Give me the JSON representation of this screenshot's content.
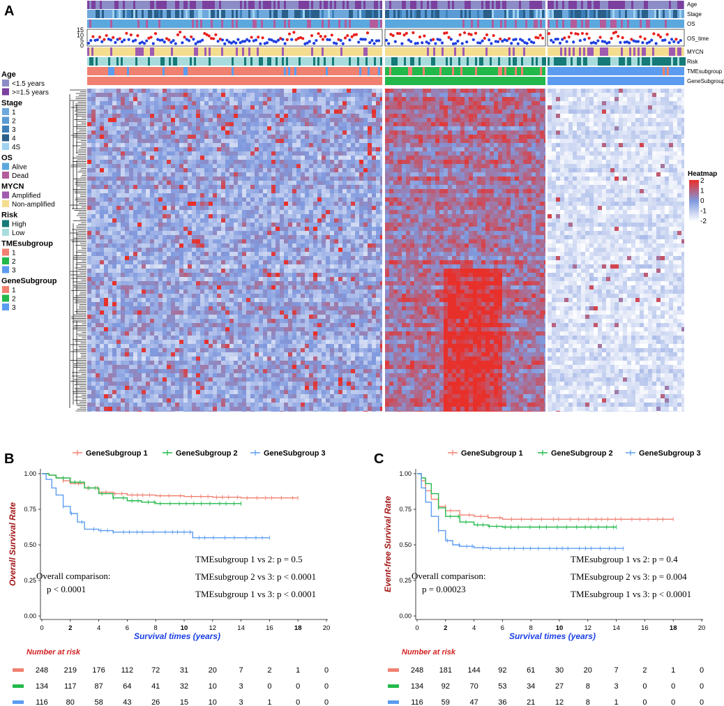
{
  "panel_labels": {
    "a": "A",
    "b": "B",
    "c": "C"
  },
  "colors": {
    "age_young": "#8c8cc6",
    "age_old": "#7b3f9e",
    "stage": [
      "#6fa8dc",
      "#5b9bd5",
      "#3d7fb8",
      "#2a5f8a",
      "#9fd3f0"
    ],
    "os_alive": "#5ba8de",
    "os_dead": "#b25c9c",
    "mycn_amp": "#a05ab0",
    "mycn_non": "#f4dd8f",
    "risk_high": "#157a78",
    "risk_low": "#a8dcdc",
    "group1": "#f08070",
    "group2": "#22b94a",
    "group3": "#5b9cf0",
    "heat_high": "#e8302a",
    "heat_mid": "#7f99de",
    "heat_low": "#ffffff",
    "os_time_red": "#e82020",
    "os_time_blue": "#1f3fe0"
  },
  "annotation_rows": [
    "Age",
    "Stage",
    "OS",
    "OS_time",
    "MYCN",
    "Risk",
    "TMEsubgroup",
    "GeneSubgroup"
  ],
  "os_time_ticks": [
    "15",
    "10",
    "5",
    "0"
  ],
  "legend": [
    {
      "title": "Age",
      "items": [
        {
          "label": "<1.5 years",
          "color": "#8c8cc6"
        },
        {
          "label": ">=1.5 years",
          "color": "#7b3f9e"
        }
      ]
    },
    {
      "title": "Stage",
      "items": [
        {
          "label": "1",
          "color": "#6fa8dc"
        },
        {
          "label": "2",
          "color": "#5b9bd5"
        },
        {
          "label": "3",
          "color": "#3d7fb8"
        },
        {
          "label": "4",
          "color": "#2a5f8a"
        },
        {
          "label": "4S",
          "color": "#9fd3f0"
        }
      ]
    },
    {
      "title": "OS",
      "items": [
        {
          "label": "Alive",
          "color": "#5ba8de"
        },
        {
          "label": "Dead",
          "color": "#b25c9c"
        }
      ]
    },
    {
      "title": "MYCN",
      "items": [
        {
          "label": "Amplified",
          "color": "#a05ab0"
        },
        {
          "label": "Non-amplified",
          "color": "#f4dd8f"
        }
      ]
    },
    {
      "title": "Risk",
      "items": [
        {
          "label": "High",
          "color": "#157a78"
        },
        {
          "label": "Low",
          "color": "#a8dcdc"
        }
      ]
    },
    {
      "title": "TMEsubgroup",
      "items": [
        {
          "label": "1",
          "color": "#f08070"
        },
        {
          "label": "2",
          "color": "#22b94a"
        },
        {
          "label": "3",
          "color": "#5b9cf0"
        }
      ]
    },
    {
      "title": "GeneSubgroup",
      "items": [
        {
          "label": "1",
          "color": "#f08070"
        },
        {
          "label": "2",
          "color": "#22b94a"
        },
        {
          "label": "3",
          "color": "#5b9cf0"
        }
      ]
    }
  ],
  "heatmap_legend": {
    "title": "Heatmap",
    "ticks": [
      "2",
      "1",
      "0",
      "-1",
      "-2"
    ]
  },
  "chart_data": [
    {
      "type": "heatmap",
      "title": "",
      "groups": [
        "GeneSubgroup 1",
        "GeneSubgroup 2",
        "GeneSubgroup 3"
      ],
      "group_sizes": [
        248,
        134,
        116
      ],
      "value_range": [
        -2,
        2
      ]
    },
    {
      "type": "line",
      "subtype": "kaplan-meier",
      "ylabel": "Overall Survival Rate",
      "xlabel": "Survival times (years)",
      "xlim": [
        0,
        20
      ],
      "ylim": [
        0,
        1
      ],
      "xticks": [
        "0",
        "2",
        "4",
        "6",
        "8",
        "10",
        "12",
        "14",
        "16",
        "18",
        "20"
      ],
      "yticks": [
        "0.00",
        "0.25",
        "0.50",
        "0.75",
        "1.00"
      ],
      "series": [
        {
          "name": "GeneSubgroup 1",
          "color": "#f08070",
          "points": [
            [
              0,
              1
            ],
            [
              0.5,
              0.99
            ],
            [
              1,
              0.97
            ],
            [
              1.5,
              0.95
            ],
            [
              2,
              0.93
            ],
            [
              3,
              0.9
            ],
            [
              4,
              0.87
            ],
            [
              5,
              0.86
            ],
            [
              6,
              0.85
            ],
            [
              8,
              0.845
            ],
            [
              10,
              0.84
            ],
            [
              12,
              0.835
            ],
            [
              14,
              0.83
            ],
            [
              16,
              0.83
            ],
            [
              18,
              0.83
            ]
          ]
        },
        {
          "name": "GeneSubgroup 2",
          "color": "#22b94a",
          "points": [
            [
              0,
              1
            ],
            [
              0.5,
              0.99
            ],
            [
              1,
              0.97
            ],
            [
              2,
              0.94
            ],
            [
              3,
              0.9
            ],
            [
              4,
              0.86
            ],
            [
              5,
              0.83
            ],
            [
              6,
              0.81
            ],
            [
              7,
              0.8
            ],
            [
              8,
              0.79
            ],
            [
              10,
              0.79
            ],
            [
              12,
              0.79
            ],
            [
              14,
              0.79
            ]
          ]
        },
        {
          "name": "GeneSubgroup 3",
          "color": "#5b9cf0",
          "points": [
            [
              0,
              1
            ],
            [
              0.3,
              0.96
            ],
            [
              0.7,
              0.9
            ],
            [
              1,
              0.85
            ],
            [
              1.5,
              0.77
            ],
            [
              2,
              0.72
            ],
            [
              2.5,
              0.66
            ],
            [
              3,
              0.61
            ],
            [
              4,
              0.6
            ],
            [
              5,
              0.59
            ],
            [
              8,
              0.59
            ],
            [
              10.5,
              0.59
            ],
            [
              10.6,
              0.55
            ],
            [
              12,
              0.55
            ],
            [
              14,
              0.55
            ],
            [
              16,
              0.55
            ]
          ]
        }
      ],
      "legend": [
        "GeneSubgroup 1",
        "GeneSubgroup 2",
        "GeneSubgroup 3"
      ],
      "annotations": {
        "overall_label": "Overall comparison:",
        "overall_p": "p < 0.0001",
        "pairwise": [
          "TMEsubgroup 1 vs 2: p = 0.5",
          "TMEsubgroup 2 vs 3: p < 0.0001",
          "TMEsubgroup 1 vs 3: p < 0.0001"
        ]
      },
      "risk_table": {
        "title": "Number at risk",
        "rows": [
          {
            "color": "#f08070",
            "values": [
              "248",
              "219",
              "176",
              "112",
              "72",
              "31",
              "20",
              "7",
              "2",
              "1",
              "0"
            ]
          },
          {
            "color": "#22b94a",
            "values": [
              "134",
              "117",
              "87",
              "64",
              "41",
              "32",
              "10",
              "3",
              "0",
              "0",
              "0"
            ]
          },
          {
            "color": "#5b9cf0",
            "values": [
              "116",
              "80",
              "58",
              "43",
              "26",
              "15",
              "10",
              "3",
              "1",
              "0",
              "0"
            ]
          }
        ]
      }
    },
    {
      "type": "line",
      "subtype": "kaplan-meier",
      "ylabel": "Event-free Survival Rate",
      "xlabel": "Survival times (years)",
      "xlim": [
        0,
        20
      ],
      "ylim": [
        0,
        1
      ],
      "xticks": [
        "0",
        "2",
        "4",
        "6",
        "8",
        "10",
        "12",
        "14",
        "16",
        "18",
        "20"
      ],
      "yticks": [
        "0.00",
        "0.25",
        "0.50",
        "0.75",
        "1.00"
      ],
      "series": [
        {
          "name": "GeneSubgroup 1",
          "color": "#f08070",
          "points": [
            [
              0,
              1
            ],
            [
              0.3,
              0.95
            ],
            [
              0.6,
              0.88
            ],
            [
              1,
              0.82
            ],
            [
              1.5,
              0.77
            ],
            [
              2,
              0.74
            ],
            [
              3,
              0.71
            ],
            [
              4,
              0.7
            ],
            [
              5,
              0.69
            ],
            [
              6,
              0.68
            ],
            [
              8,
              0.68
            ],
            [
              10,
              0.68
            ],
            [
              12,
              0.68
            ],
            [
              14,
              0.68
            ],
            [
              16,
              0.68
            ],
            [
              18,
              0.68
            ]
          ]
        },
        {
          "name": "GeneSubgroup 2",
          "color": "#22b94a",
          "points": [
            [
              0,
              1
            ],
            [
              0.3,
              0.97
            ],
            [
              0.6,
              0.93
            ],
            [
              1,
              0.86
            ],
            [
              1.5,
              0.76
            ],
            [
              2,
              0.7
            ],
            [
              3,
              0.66
            ],
            [
              4,
              0.64
            ],
            [
              5,
              0.63
            ],
            [
              6,
              0.625
            ],
            [
              8,
              0.625
            ],
            [
              10,
              0.625
            ],
            [
              12,
              0.625
            ],
            [
              14,
              0.625
            ]
          ]
        },
        {
          "name": "GeneSubgroup 3",
          "color": "#5b9cf0",
          "points": [
            [
              0,
              1
            ],
            [
              0.3,
              0.9
            ],
            [
              0.6,
              0.8
            ],
            [
              1,
              0.7
            ],
            [
              1.5,
              0.6
            ],
            [
              2,
              0.53
            ],
            [
              2.5,
              0.5
            ],
            [
              3,
              0.49
            ],
            [
              4,
              0.48
            ],
            [
              5,
              0.475
            ],
            [
              8,
              0.475
            ],
            [
              10,
              0.475
            ],
            [
              12,
              0.475
            ],
            [
              14.5,
              0.475
            ]
          ]
        }
      ],
      "legend": [
        "GeneSubgroup 1",
        "GeneSubgroup 2",
        "GeneSubgroup 3"
      ],
      "annotations": {
        "overall_label": "Overall comparison:",
        "overall_p": "p = 0.00023",
        "pairwise": [
          "TMEsubgroup 1 vs 2: p = 0.4",
          "TMEsubgroup 2 vs 3: p = 0.004",
          "TMEsubgroup 1 vs 3: p < 0.0001"
        ]
      },
      "risk_table": {
        "title": "Number at risk",
        "rows": [
          {
            "color": "#f08070",
            "values": [
              "248",
              "181",
              "144",
              "92",
              "61",
              "30",
              "20",
              "7",
              "2",
              "1",
              "0"
            ]
          },
          {
            "color": "#22b94a",
            "values": [
              "134",
              "92",
              "70",
              "53",
              "34",
              "27",
              "8",
              "3",
              "0",
              "0",
              "0"
            ]
          },
          {
            "color": "#5b9cf0",
            "values": [
              "116",
              "59",
              "47",
              "36",
              "21",
              "12",
              "8",
              "1",
              "0",
              "0",
              "0"
            ]
          }
        ]
      }
    }
  ]
}
